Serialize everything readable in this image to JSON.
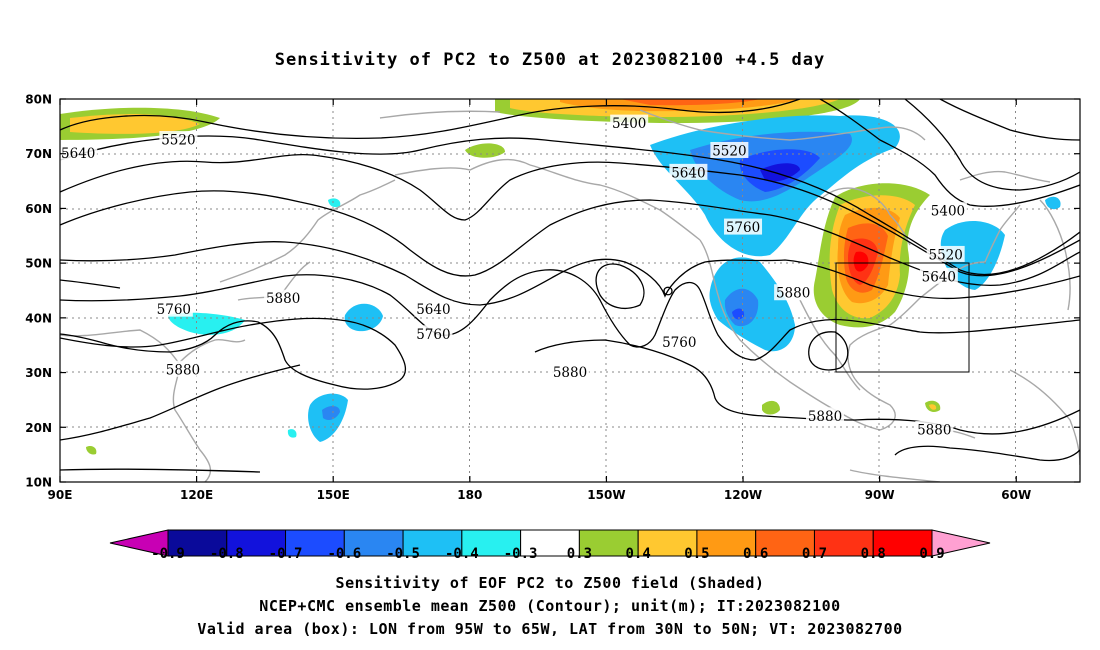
{
  "title": "Sensitivity of PC2 to Z500 at 2023082100 +4.5 day",
  "captions": [
    "Sensitivity of EOF PC2 to Z500 field (Shaded)",
    "NCEP+CMC ensemble mean Z500 (Contour); unit(m); IT:2023082100",
    "Valid area (box): LON from 95W to 65W, LAT from 30N to 50N; VT: 2023082700"
  ],
  "map": {
    "lat_ticks": [
      "80N",
      "70N",
      "60N",
      "50N",
      "40N",
      "30N",
      "20N",
      "10N"
    ],
    "lon_ticks": [
      "90E",
      "120E",
      "150E",
      "180",
      "150W",
      "120W",
      "90W",
      "60W"
    ],
    "contour_labels": [
      {
        "text": "5400",
        "lon": -145,
        "lat": 75.5
      },
      {
        "text": "5400",
        "lon": -75,
        "lat": 59.5
      },
      {
        "text": "5520",
        "lon": 116,
        "lat": 72.5
      },
      {
        "text": "5520",
        "lon": -123,
        "lat": 70.5
      },
      {
        "text": "5520",
        "lon": -75.5,
        "lat": 51.5
      },
      {
        "text": "5640",
        "lon": 94,
        "lat": 70
      },
      {
        "text": "5640",
        "lon": -132,
        "lat": 66.5
      },
      {
        "text": "5640",
        "lon": -77,
        "lat": 47.5
      },
      {
        "text": "5640",
        "lon": 172,
        "lat": 41.5
      },
      {
        "text": "5760",
        "lon": 115,
        "lat": 41.5
      },
      {
        "text": "5760",
        "lon": 172,
        "lat": 37
      },
      {
        "text": "5760",
        "lon": -134,
        "lat": 35.5
      },
      {
        "text": "5760",
        "lon": -120,
        "lat": 56.5
      },
      {
        "text": "5880",
        "lon": 139,
        "lat": 43.5
      },
      {
        "text": "5880",
        "lon": 117,
        "lat": 30.5
      },
      {
        "text": "5880",
        "lon": -158,
        "lat": 30
      },
      {
        "text": "5880",
        "lon": -109,
        "lat": 44.5
      },
      {
        "text": "5880",
        "lon": -102,
        "lat": 22
      },
      {
        "text": "5880",
        "lon": -78,
        "lat": 19.5
      }
    ],
    "valid_box": {
      "lon_from": "95W",
      "lon_to": "65W",
      "lat_from": "30N",
      "lat_to": "50N"
    }
  },
  "colorbar": {
    "labels": [
      "-0.9",
      "-0.8",
      "-0.7",
      "-0.6",
      "-0.5",
      "-0.4",
      "-0.3",
      "0.3",
      "0.4",
      "0.5",
      "0.6",
      "0.7",
      "0.8",
      "0.9"
    ],
    "colors": [
      "#0a0a9a",
      "#1212dc",
      "#1c4cff",
      "#2a86f2",
      "#1ec0f5",
      "#28f0f0",
      "#ffffff",
      "#9acd32",
      "#ffc830",
      "#ff9a14",
      "#ff6414",
      "#ff3214",
      "#ff0000"
    ],
    "low_end_color": "#c800b4",
    "high_end_color": "#ffa0d2"
  }
}
